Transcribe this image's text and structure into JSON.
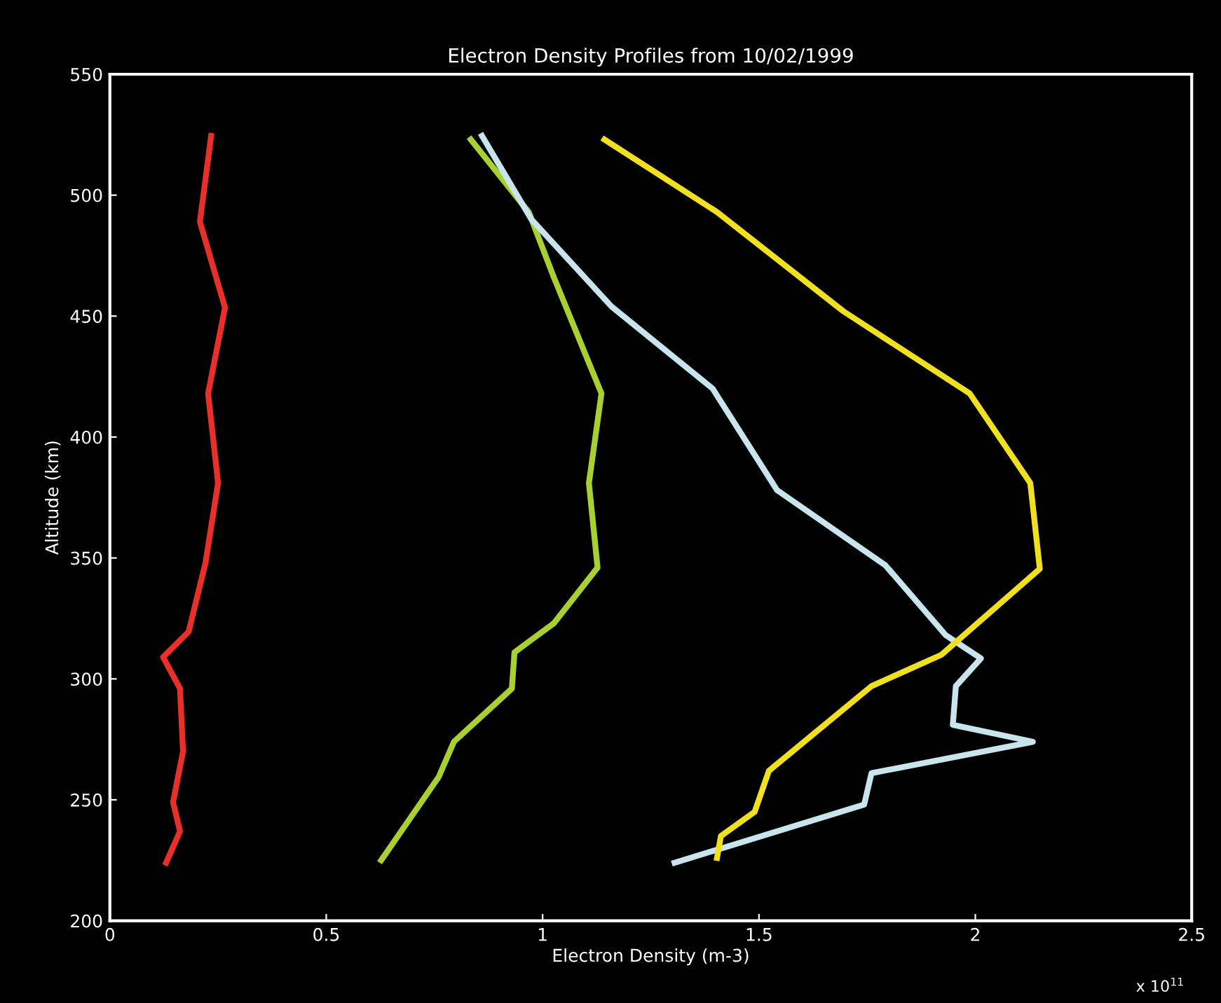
{
  "chart_data": {
    "type": "line",
    "title": "Electron Density Profiles from 10/02/1999",
    "xlabel": "Electron Density (m-3)",
    "ylabel": "Altitude (km)",
    "annotations": [
      "x 10$^{11}$"
    ],
    "xlim": [
      0,
      2.5
    ],
    "xticks": [
      0,
      0.5,
      1,
      1.5,
      2,
      2.5
    ],
    "ylim": [
      200,
      550
    ],
    "yticks": [
      200,
      250,
      300,
      350,
      400,
      450,
      500,
      550
    ],
    "grid": false,
    "legend": false,
    "line_style": "solid",
    "marker": "none",
    "series": [
      {
        "color": "#e8302a",
        "x": [
          0.234,
          0.208,
          0.266,
          0.227,
          0.25,
          0.221,
          0.182,
          0.123,
          0.162,
          0.169,
          0.146,
          0.162,
          0.13
        ],
        "values": [
          524.5,
          489,
          453.5,
          418,
          381,
          348,
          319.5,
          309,
          296,
          270,
          249,
          237,
          224
        ]
      },
      {
        "color": "#a8d030",
        "x": [
          0.834,
          0.968,
          1.026,
          1.136,
          1.107,
          1.127,
          1.026,
          0.935,
          0.929,
          0.795,
          0.76,
          0.627
        ],
        "values": [
          523,
          493,
          466,
          418,
          381,
          346,
          323,
          311,
          296,
          274,
          259.5,
          225
        ]
      },
      {
        "color": "#c8e4ec",
        "x": [
          0.86,
          0.974,
          1.159,
          1.393,
          1.542,
          1.792,
          1.932,
          2.013,
          1.955,
          1.948,
          2.133,
          1.76,
          1.743,
          1.305
        ],
        "values": [
          524.5,
          490,
          454,
          420,
          378,
          347,
          318,
          308.5,
          297,
          281,
          274,
          261,
          248,
          224
        ]
      },
      {
        "color": "#f0e020",
        "x": [
          1.143,
          1.403,
          1.695,
          1.987,
          2.127,
          2.149,
          1.922,
          1.76,
          1.523,
          1.49,
          1.412,
          1.403
        ],
        "values": [
          523,
          493,
          452,
          418,
          381,
          345.5,
          310,
          297,
          262,
          245,
          235,
          226
        ]
      }
    ]
  }
}
